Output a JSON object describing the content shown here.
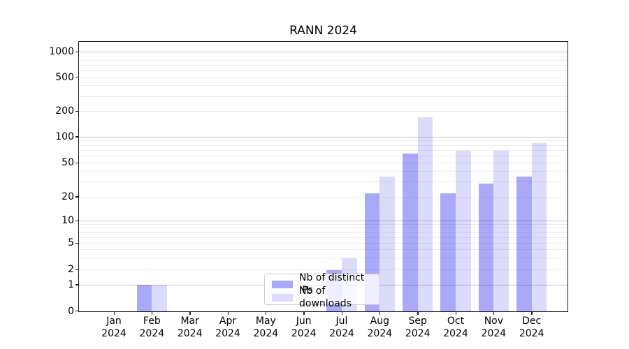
{
  "title": "RANN 2024",
  "colors": {
    "ips": "rgba(40,40,235,0.40)",
    "downloads": "rgba(40,40,235,0.17)",
    "grid_major": "#c3c3c3",
    "grid_minor": "#ededed",
    "spine": "#1a1a1a"
  },
  "legend": {
    "items": [
      {
        "label": "Nb of distinct IPs",
        "color_key": "ips"
      },
      {
        "label": "Nb of downloads",
        "color_key": "downloads"
      }
    ]
  },
  "chart_data": {
    "type": "bar",
    "title": "RANN 2024",
    "categories": [
      "Jan 2024",
      "Feb 2024",
      "Mar 2024",
      "Apr 2024",
      "May 2024",
      "Jun 2024",
      "Jul 2024",
      "Aug 2024",
      "Sep 2024",
      "Oct 2024",
      "Nov 2024",
      "Dec 2024"
    ],
    "series": [
      {
        "name": "Nb of distinct IPs",
        "color_key": "ips",
        "values": [
          0,
          1,
          0,
          0,
          0,
          0,
          2,
          22,
          65,
          22,
          29,
          35
        ]
      },
      {
        "name": "Nb of downloads",
        "color_key": "downloads",
        "values": [
          0,
          1,
          0,
          0,
          0,
          0,
          3,
          35,
          170,
          70,
          70,
          85
        ]
      }
    ],
    "x_axis": {
      "year_line": "2024",
      "months": [
        "Jan",
        "Feb",
        "Mar",
        "Apr",
        "May",
        "Jun",
        "Jul",
        "Aug",
        "Sep",
        "Oct",
        "Nov",
        "Dec"
      ]
    },
    "y_axis": {
      "scale": "symlog-like",
      "tick_values": [
        0,
        1,
        2,
        5,
        10,
        20,
        50,
        100,
        200,
        500,
        1000
      ],
      "major_gridlines": [
        1,
        10,
        100,
        1000
      ],
      "minor_gridlines": [
        2,
        3,
        4,
        5,
        6,
        7,
        8,
        9,
        20,
        30,
        40,
        50,
        60,
        70,
        80,
        90,
        200,
        300,
        400,
        500,
        600,
        700,
        800,
        900
      ],
      "ylim": [
        0,
        1100
      ]
    },
    "legend_position": "lower center",
    "grid": true
  }
}
